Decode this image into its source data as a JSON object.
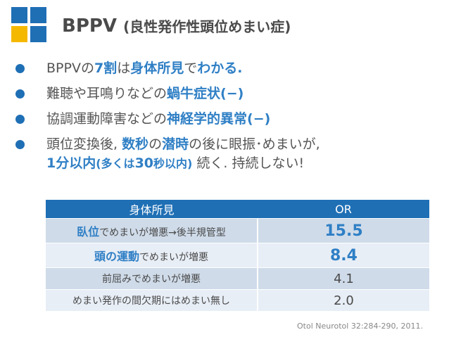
{
  "title": {
    "main": "BPPV",
    "sub": "(良性発作性頭位めまい症)"
  },
  "bullets": [
    {
      "parts": [
        {
          "t": "BPPVの",
          "hl": false
        },
        {
          "t": "7割",
          "hl": true
        },
        {
          "t": "は",
          "hl": false
        },
        {
          "t": "身体所見",
          "hl": true
        },
        {
          "t": "で",
          "hl": false
        },
        {
          "t": "わかる.",
          "hl": true
        }
      ]
    },
    {
      "parts": [
        {
          "t": "難聴や耳鳴りなどの",
          "hl": false
        },
        {
          "t": "蝸牛症状(−)",
          "hl": true
        }
      ]
    },
    {
      "parts": [
        {
          "t": "協調運動障害などの",
          "hl": false
        },
        {
          "t": "神経学的異常(−)",
          "hl": true
        }
      ]
    },
    {
      "line1": [
        {
          "t": "頭位変換後, ",
          "hl": false
        },
        {
          "t": "数秒",
          "hl": true
        },
        {
          "t": "の",
          "hl": false
        },
        {
          "t": "潜時",
          "hl": true
        },
        {
          "t": "の後に眼振･めまいが,",
          "hl": false
        }
      ],
      "line2": [
        {
          "t": "1分以内",
          "hl": true
        },
        {
          "t": "(多くは",
          "hl": true,
          "small": true
        },
        {
          "t": "30",
          "hl": true
        },
        {
          "t": "秒以内)",
          "hl": true,
          "small": true
        },
        {
          "t": " 続く. 持続しない!",
          "hl": false
        }
      ]
    }
  ],
  "table": {
    "headers": [
      "身体所見",
      "OR"
    ],
    "rows": [
      {
        "label_hl": "臥位",
        "label_rest": "でめまいが増悪→後半規管型",
        "value": "15.5"
      },
      {
        "label_hl": "頭の運動",
        "label_rest": "でめまいが増悪",
        "value": "8.4"
      },
      {
        "label_hl": "",
        "label_rest": "前屈みでめまいが増悪",
        "value": "4.1"
      },
      {
        "label_hl": "",
        "label_rest": "めまい発作の間欠期にはめまい無し",
        "value": "2.0"
      }
    ]
  },
  "citation": "Otol Neurotol 32:284-290, 2011.",
  "colors": {
    "accent": "#1f6fb5",
    "highlight": "#2f7fc5",
    "logo_yellow": "#f5b800"
  },
  "icons": {
    "logo": "four-squares-logo"
  }
}
